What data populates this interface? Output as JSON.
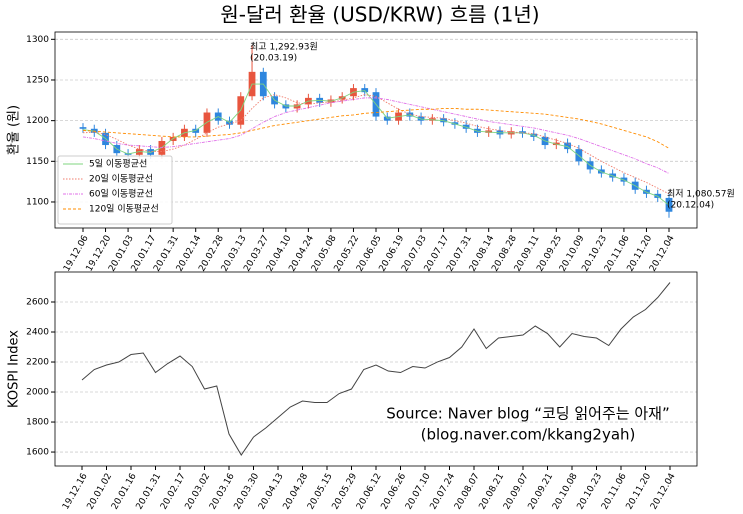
{
  "chart_data": [
    {
      "type": "candlestick",
      "title": "원-달러 환율 (USD/KRW) 흐름 (1년)",
      "y_label": "환율 (원)",
      "categories": [
        "19.12.06",
        null,
        "19.12.20",
        null,
        "20.01.03",
        null,
        "20.01.17",
        null,
        "20.01.31",
        null,
        "20.02.14",
        null,
        "20.02.28",
        null,
        "20.03.13",
        null,
        "20.03.27",
        null,
        "20.04.10",
        null,
        "20.04.24",
        null,
        "20.05.08",
        null,
        "20.05.22",
        null,
        "20.06.05",
        null,
        "20.06.19",
        null,
        "20.07.03",
        null,
        "20.07.17",
        null,
        "20.07.31",
        null,
        "20.08.14",
        null,
        "20.08.28",
        null,
        "20.09.11",
        null,
        "20.09.25",
        null,
        "20.10.09",
        null,
        "20.10.23",
        null,
        "20.11.06",
        null,
        "20.11.20",
        null,
        "20.12.04"
      ],
      "open": [
        1192,
        1190,
        1185,
        1170,
        1160,
        1158,
        1165,
        1158,
        1175,
        1180,
        1190,
        1185,
        1210,
        1200,
        1195,
        1230,
        1260,
        1230,
        1220,
        1215,
        1220,
        1228,
        1222,
        1226,
        1230,
        1240,
        1235,
        1205,
        1200,
        1210,
        1205,
        1200,
        1203,
        1198,
        1195,
        1190,
        1185,
        1188,
        1183,
        1187,
        1184,
        1180,
        1170,
        1173,
        1165,
        1150,
        1140,
        1135,
        1130,
        1125,
        1115,
        1110,
        1105
      ],
      "high": [
        1197,
        1195,
        1190,
        1175,
        1165,
        1170,
        1170,
        1180,
        1185,
        1195,
        1195,
        1215,
        1215,
        1205,
        1235,
        1292.93,
        1265,
        1235,
        1225,
        1225,
        1233,
        1233,
        1231,
        1235,
        1245,
        1245,
        1240,
        1210,
        1215,
        1215,
        1210,
        1208,
        1208,
        1203,
        1200,
        1195,
        1193,
        1193,
        1192,
        1192,
        1189,
        1185,
        1178,
        1178,
        1170,
        1155,
        1145,
        1140,
        1135,
        1130,
        1120,
        1115,
        1110
      ],
      "low": [
        1185,
        1180,
        1165,
        1155,
        1153,
        1153,
        1153,
        1153,
        1170,
        1175,
        1180,
        1180,
        1195,
        1190,
        1190,
        1225,
        1225,
        1215,
        1210,
        1210,
        1215,
        1217,
        1217,
        1221,
        1225,
        1230,
        1200,
        1195,
        1195,
        1200,
        1195,
        1195,
        1193,
        1190,
        1185,
        1180,
        1180,
        1178,
        1178,
        1179,
        1175,
        1165,
        1165,
        1160,
        1145,
        1135,
        1130,
        1125,
        1120,
        1110,
        1105,
        1100,
        1080.57
      ],
      "close": [
        1190,
        1185,
        1170,
        1160,
        1158,
        1165,
        1158,
        1175,
        1180,
        1190,
        1185,
        1210,
        1200,
        1195,
        1230,
        1260,
        1230,
        1220,
        1215,
        1220,
        1228,
        1222,
        1226,
        1230,
        1240,
        1235,
        1205,
        1200,
        1210,
        1205,
        1200,
        1203,
        1198,
        1195,
        1190,
        1185,
        1188,
        1183,
        1187,
        1184,
        1180,
        1170,
        1173,
        1165,
        1150,
        1140,
        1135,
        1130,
        1125,
        1115,
        1110,
        1105,
        1088
      ],
      "up_color": "#e8553e",
      "down_color": "#2e86de",
      "series": [
        {
          "name": "5일 이동평균선",
          "color": "#7fd47f",
          "dash": "none",
          "values": [
            1189,
            1187,
            1178,
            1165,
            1159,
            1162,
            1161,
            1167,
            1178,
            1185,
            1188,
            1198,
            1205,
            1198,
            1213,
            1245,
            1245,
            1225,
            1218,
            1218,
            1224,
            1225,
            1224,
            1228,
            1235,
            1237,
            1220,
            1203,
            1205,
            1207,
            1202,
            1201,
            1200,
            1196,
            1192,
            1187,
            1186,
            1185,
            1185,
            1185,
            1182,
            1175,
            1171,
            1168,
            1157,
            1145,
            1137,
            1132,
            1127,
            1120,
            1112,
            1107,
            1096
          ]
        },
        {
          "name": "20일 이동평균선",
          "color": "#f07c6c",
          "dash": "1.5 1.5",
          "values": [
            1185,
            1186,
            1183,
            1177,
            1170,
            1165,
            1162,
            1162,
            1165,
            1170,
            1177,
            1185,
            1192,
            1196,
            1200,
            1215,
            1228,
            1232,
            1228,
            1222,
            1220,
            1222,
            1223,
            1225,
            1228,
            1232,
            1230,
            1222,
            1214,
            1208,
            1205,
            1204,
            1203,
            1200,
            1197,
            1193,
            1190,
            1188,
            1186,
            1185,
            1184,
            1180,
            1176,
            1172,
            1166,
            1158,
            1150,
            1143,
            1136,
            1130,
            1124,
            1117,
            1110
          ]
        },
        {
          "name": "60일 이동평균선",
          "color": "#e070e8",
          "dash": "3 1 1 1",
          "values": [
            1180,
            1178,
            1175,
            1172,
            1170,
            1169,
            1168,
            1167,
            1168,
            1170,
            1172,
            1174,
            1176,
            1178,
            1182,
            1190,
            1198,
            1205,
            1210,
            1213,
            1216,
            1219,
            1222,
            1224,
            1226,
            1228,
            1228,
            1226,
            1223,
            1220,
            1217,
            1214,
            1211,
            1208,
            1205,
            1202,
            1199,
            1197,
            1195,
            1193,
            1191,
            1188,
            1185,
            1182,
            1178,
            1173,
            1168,
            1163,
            1158,
            1153,
            1147,
            1142,
            1135
          ]
        },
        {
          "name": "120일 이동평균선",
          "color": "#ff8c00",
          "dash": "3 2",
          "values": [
            1188,
            1187,
            1186,
            1185,
            1184,
            1183,
            1182,
            1181,
            1180,
            1180,
            1180,
            1181,
            1182,
            1183,
            1185,
            1188,
            1191,
            1194,
            1196,
            1198,
            1200,
            1202,
            1204,
            1206,
            1207,
            1209,
            1210,
            1211,
            1212,
            1213,
            1214,
            1214,
            1215,
            1215,
            1214,
            1214,
            1213,
            1212,
            1211,
            1210,
            1209,
            1208,
            1206,
            1204,
            1202,
            1199,
            1196,
            1192,
            1188,
            1184,
            1180,
            1174,
            1166
          ]
        }
      ],
      "annotations": [
        {
          "kind": "max",
          "color": "#e01010",
          "lines": [
            "최고 1,292.93원",
            "(20.03.19)"
          ]
        },
        {
          "kind": "min",
          "color": "#1010e0",
          "lines": [
            "최저 1,080.57원",
            "(20.12.04)"
          ]
        }
      ],
      "ylim": [
        1068,
        1309
      ],
      "yticks": [
        1100,
        1150,
        1200,
        1250,
        1300
      ],
      "grid": true,
      "legend": "lower left"
    },
    {
      "type": "line",
      "y_label": "KOSPI Index",
      "categories": [
        "19.12.16",
        null,
        "20.01.02",
        null,
        "20.01.16",
        null,
        "20.01.31",
        null,
        "20.02.17",
        null,
        "20.03.02",
        null,
        "20.03.16",
        null,
        "20.03.30",
        null,
        "20.04.13",
        null,
        "20.04.28",
        null,
        "20.05.15",
        null,
        "20.05.29",
        null,
        "20.06.12",
        null,
        "20.06.26",
        null,
        "20.07.10",
        null,
        "20.07.24",
        null,
        "20.08.07",
        null,
        "20.08.21",
        null,
        "20.09.07",
        null,
        "20.09.21",
        null,
        "20.10.08",
        null,
        "20.10.23",
        null,
        "20.11.06",
        null,
        "20.11.20",
        null,
        "20.12.04"
      ],
      "values": [
        2080,
        2150,
        2180,
        2200,
        2250,
        2260,
        2130,
        2190,
        2240,
        2170,
        2020,
        2040,
        1720,
        1580,
        1700,
        1760,
        1830,
        1900,
        1940,
        1930,
        1930,
        1990,
        2020,
        2150,
        2180,
        2140,
        2130,
        2170,
        2160,
        2200,
        2230,
        2300,
        2420,
        2290,
        2360,
        2370,
        2380,
        2440,
        2390,
        2300,
        2390,
        2370,
        2360,
        2310,
        2420,
        2500,
        2550,
        2630,
        2730
      ],
      "color": "#444444",
      "ylim": [
        1507,
        2800
      ],
      "yticks": [
        1600,
        1800,
        2000,
        2200,
        2400,
        2600
      ],
      "grid": true,
      "watermark": [
        "Source: Naver blog “코딩 읽어주는 아재”",
        "(blog.naver.com/kkang2yah)"
      ]
    }
  ]
}
